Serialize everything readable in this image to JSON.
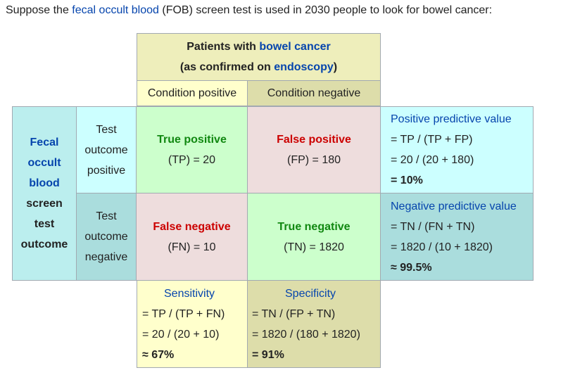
{
  "intro": {
    "prefix": "Suppose the ",
    "link": "fecal occult blood",
    "suffix": " (FOB) screen test is used in 2030 people to look for bowel cancer:"
  },
  "header": {
    "line1_prefix": "Patients with ",
    "line1_link": "bowel cancer",
    "line2_prefix": "(as confirmed on ",
    "line2_link": "endoscopy",
    "line2_suffix": ")",
    "condition_positive": "Condition positive",
    "condition_negative": "Condition negative"
  },
  "row_header": {
    "link_lines": [
      "Fecal",
      "occult",
      "blood"
    ],
    "text_lines": [
      "screen",
      "test",
      "outcome"
    ]
  },
  "test_positive": [
    "Test",
    "outcome",
    "positive"
  ],
  "test_negative": [
    "Test",
    "outcome",
    "negative"
  ],
  "tp": {
    "title": "True positive",
    "value": "(TP) = 20"
  },
  "fp": {
    "title": "False positive",
    "value": "(FP) = 180"
  },
  "fn": {
    "title": "False negative",
    "value": "(FN) = 10"
  },
  "tn": {
    "title": "True negative",
    "value": "(TN) = 1820"
  },
  "ppv": {
    "title": "Positive predictive value",
    "formula": "= TP / (TP + FP)",
    "calc": "= 20 / (20 + 180)",
    "result": "= 10%"
  },
  "npv": {
    "title": "Negative predictive value",
    "formula": "= TN / (FN + TN)",
    "calc": "= 1820 / (10 + 1820)",
    "result": "≈ 99.5%"
  },
  "sensitivity": {
    "title": "Sensitivity",
    "formula": "= TP / (TP + FN)",
    "calc": "= 20 / (20 + 10)",
    "result": "≈ 67%"
  },
  "specificity": {
    "title": "Specificity",
    "formula": "= TN / (FP + TN)",
    "calc": "= 1820 / (180 + 1820)",
    "result": "= 91%"
  },
  "colors": {
    "header_yellow": "#eeeebb",
    "cond_pos": "#ffffcc",
    "cond_neg": "#ddddaa",
    "fob_cyan": "#bbeeee",
    "test_pos": "#ccffff",
    "test_neg": "#aadddd",
    "true_green": "#ccffcc",
    "false_pink": "#eedddd",
    "link_blue": "#0645ad",
    "green_text": "#118811",
    "red_text": "#cc0000"
  }
}
